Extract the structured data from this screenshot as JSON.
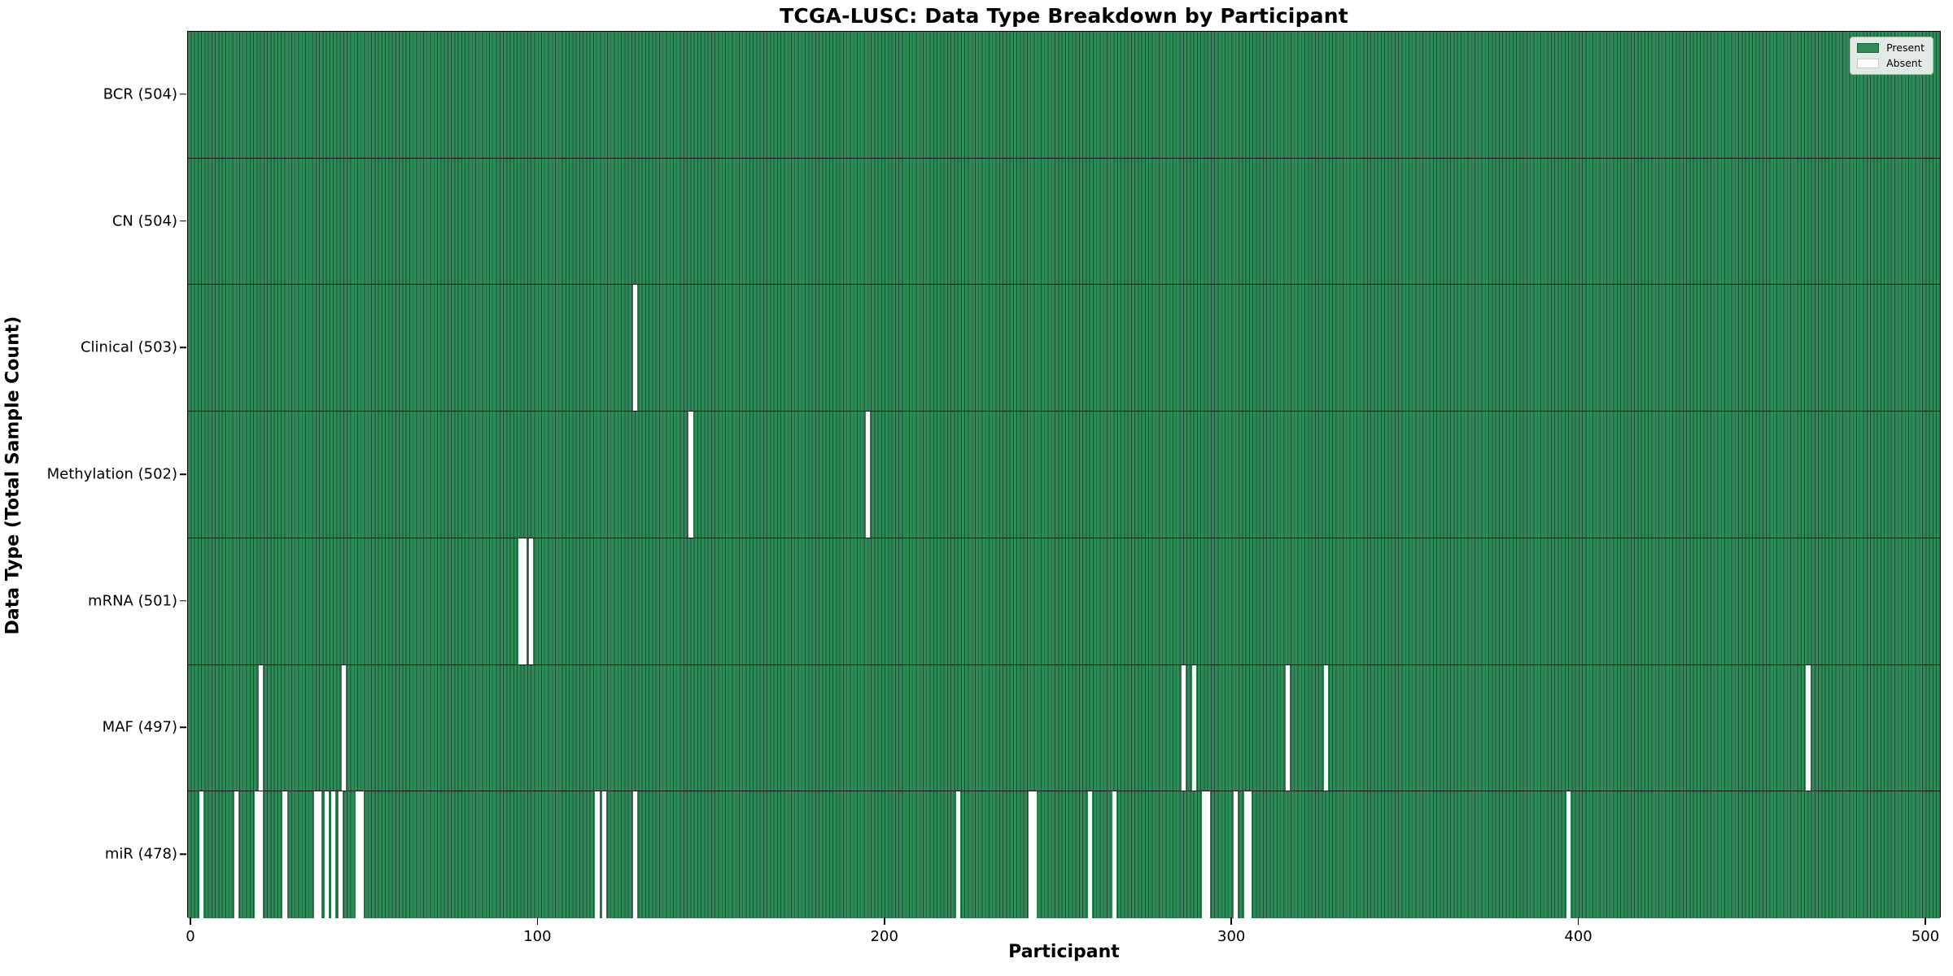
{
  "figure": {
    "background": "#ffffff"
  },
  "chart_data": {
    "type": "heatmap",
    "title": "TCGA-LUSC: Data Type Breakdown by Participant",
    "xlabel": "Participant",
    "ylabel": "Data Type (Total Sample Count)",
    "x_ticks": [
      0,
      100,
      200,
      300,
      400,
      500
    ],
    "x_range": [
      0,
      505
    ],
    "n_participants": 504,
    "grid": false,
    "legend_position": "upper right",
    "legend": [
      {
        "label": "Present",
        "color": "#2e8b57"
      },
      {
        "label": "Absent",
        "color": "#ffffff"
      }
    ],
    "colors": {
      "present": "#2e8b57",
      "absent": "#ffffff",
      "bar_edge": "#1d4d35",
      "spine": "#000000"
    },
    "rows": [
      {
        "data_type": "BCR",
        "label": "BCR (504)",
        "present_count": 504,
        "absent_participants": []
      },
      {
        "data_type": "CN",
        "label": "CN (504)",
        "present_count": 504,
        "absent_participants": []
      },
      {
        "data_type": "Clinical",
        "label": "Clinical (503)",
        "present_count": 503,
        "absent_participants": [
          128
        ]
      },
      {
        "data_type": "Methylation",
        "label": "Methylation (502)",
        "present_count": 502,
        "absent_participants": [
          144,
          195
        ]
      },
      {
        "data_type": "mRNA",
        "label": "mRNA (501)",
        "present_count": 501,
        "absent_participants": [
          95,
          96,
          98
        ]
      },
      {
        "data_type": "MAF",
        "label": "MAF (497)",
        "present_count": 497,
        "absent_participants": [
          20,
          44,
          286,
          289,
          316,
          327,
          466
        ]
      },
      {
        "data_type": "miR",
        "label": "miR (478)",
        "present_count": 478,
        "absent_participants": [
          3,
          13,
          19,
          20,
          27,
          36,
          37,
          39,
          41,
          43,
          48,
          49,
          117,
          119,
          128,
          221,
          242,
          243,
          259,
          266,
          292,
          293,
          301,
          304,
          305,
          397
        ]
      }
    ]
  }
}
